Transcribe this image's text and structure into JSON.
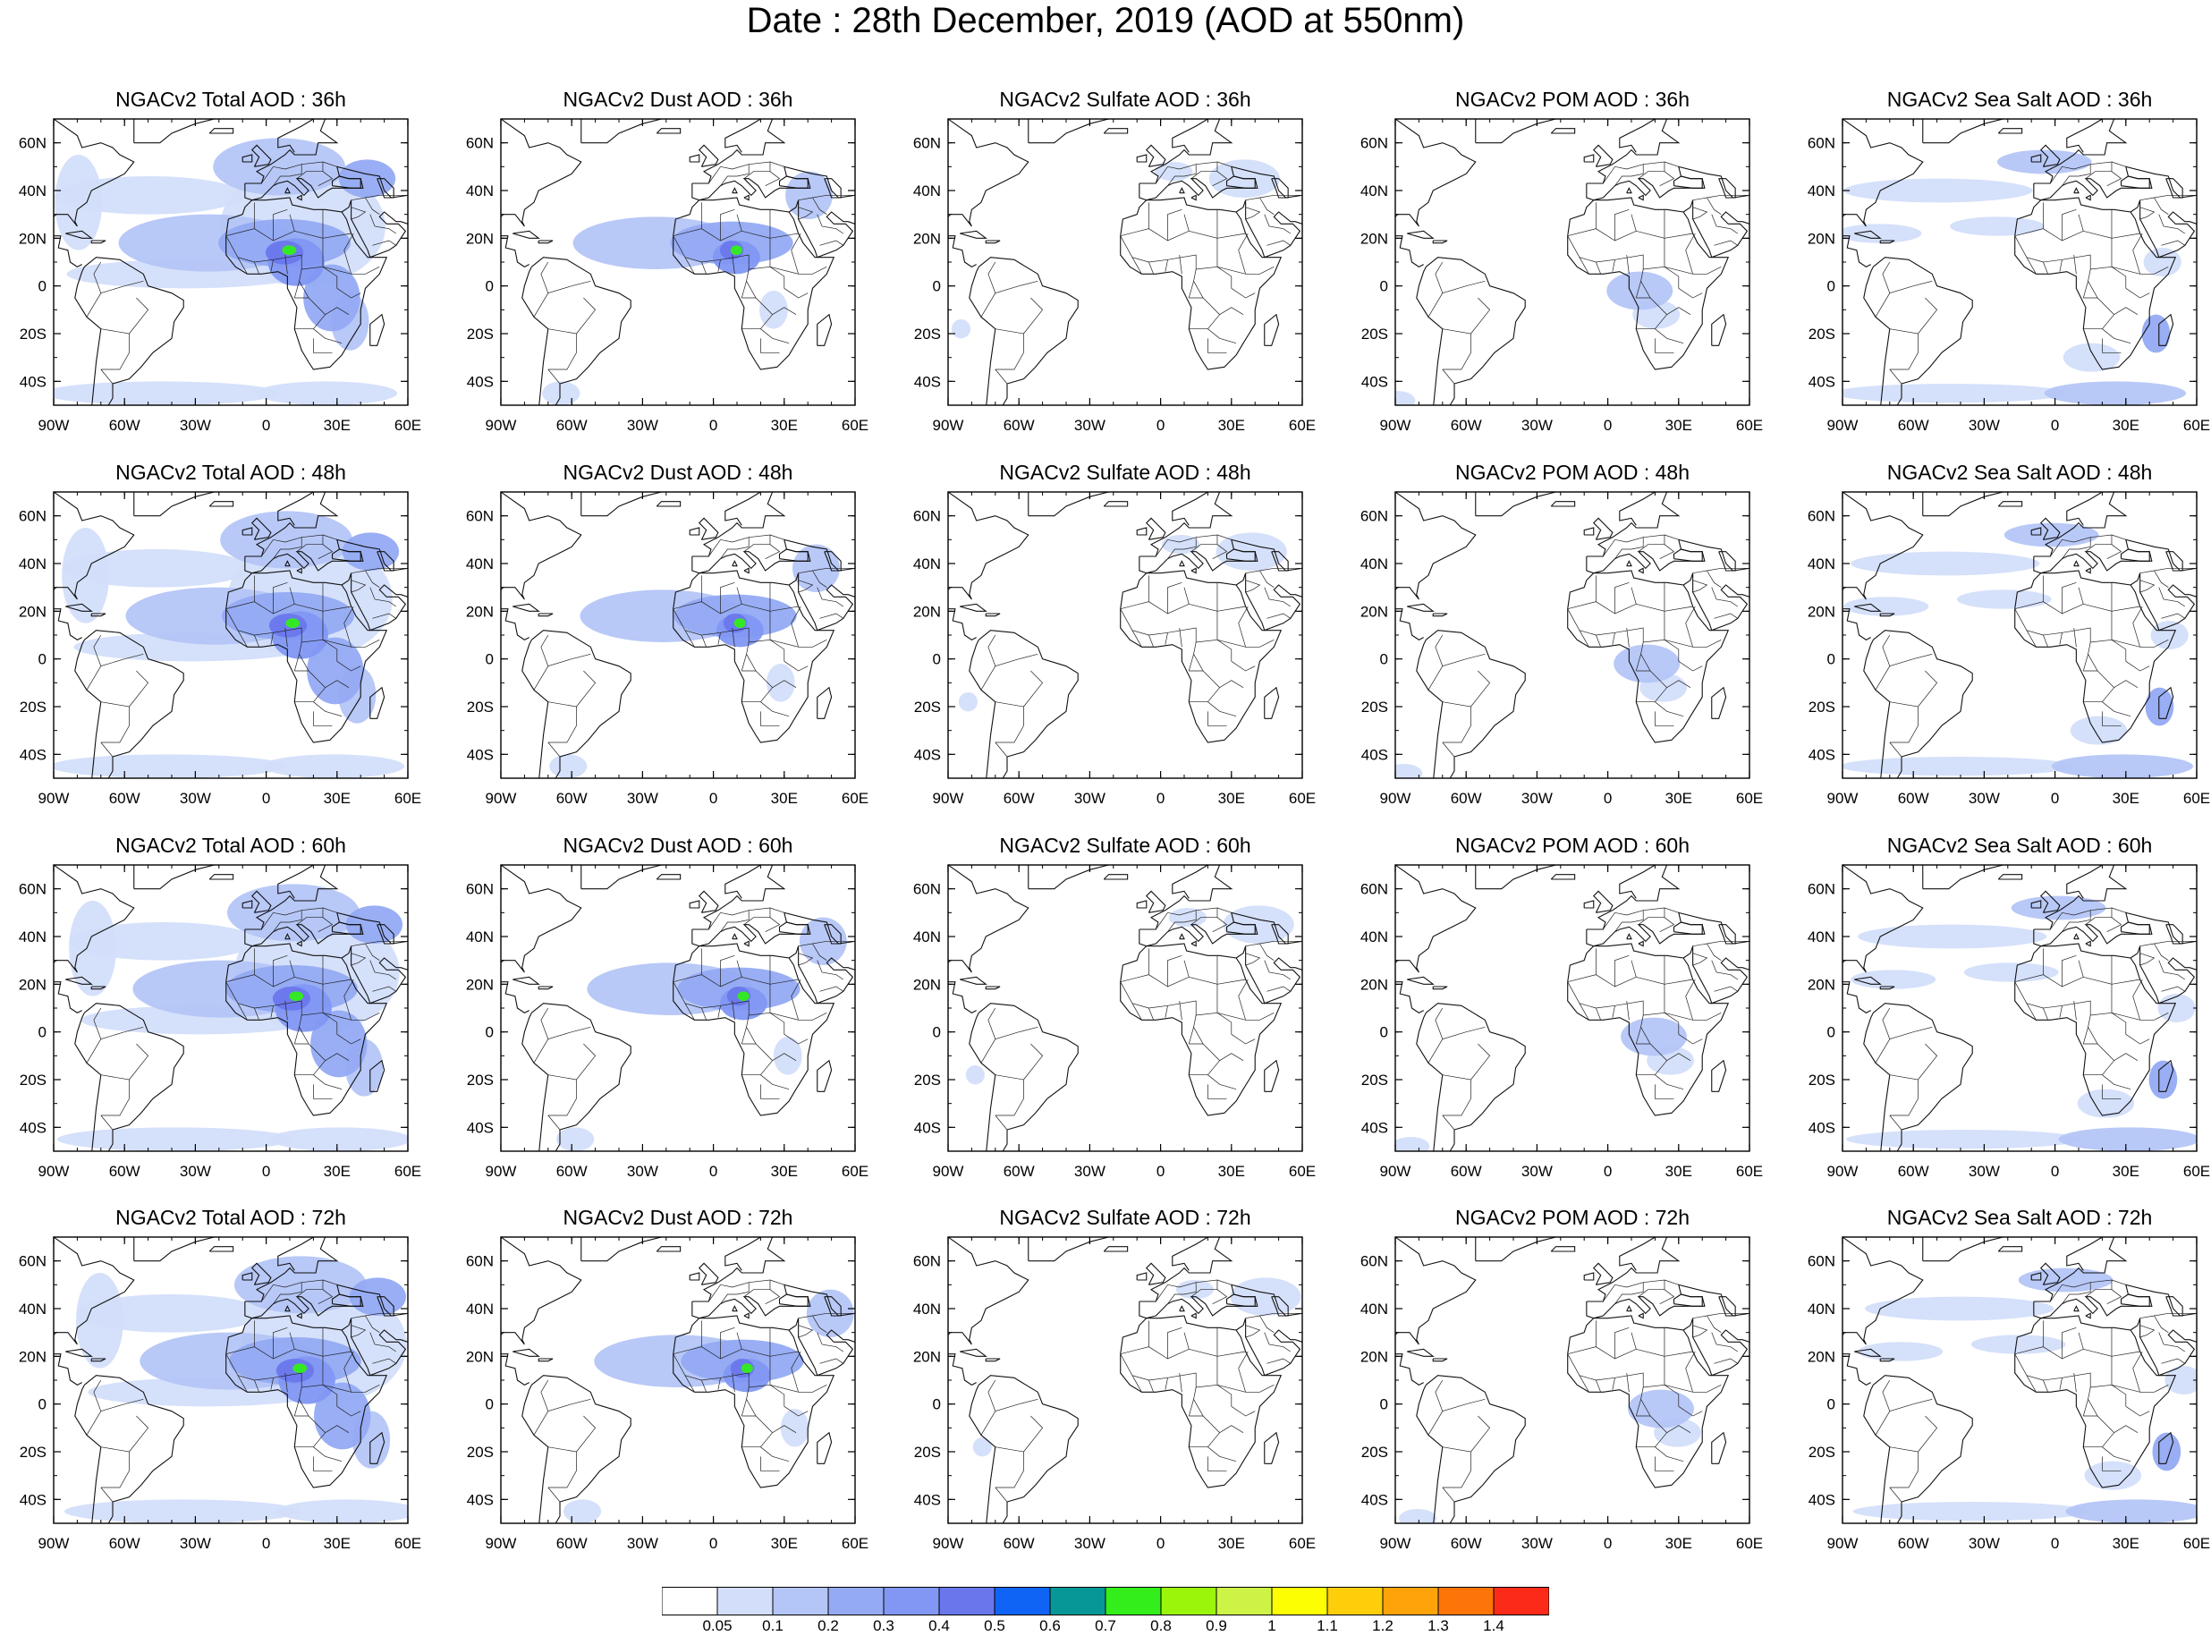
{
  "title": "Date : 28th December, 2019 (AOD at 550nm)",
  "columns": [
    "Total",
    "Dust",
    "Sulfate",
    "POM",
    "Sea Salt"
  ],
  "panels": [
    [
      "NGACv2 Total AOD : 36h",
      "NGACv2 Dust AOD : 36h",
      "NGACv2 Sulfate AOD : 36h",
      "NGACv2 POM AOD : 36h",
      "NGACv2 Sea Salt AOD : 36h"
    ],
    [
      "NGACv2 Total AOD : 48h",
      "NGACv2 Dust AOD : 48h",
      "NGACv2 Sulfate AOD : 48h",
      "NGACv2 POM AOD : 48h",
      "NGACv2 Sea Salt AOD : 48h"
    ],
    [
      "NGACv2 Total AOD : 60h",
      "NGACv2 Dust AOD : 60h",
      "NGACv2 Sulfate AOD : 60h",
      "NGACv2 POM AOD : 60h",
      "NGACv2 Sea Salt AOD : 60h"
    ],
    [
      "NGACv2 Total AOD : 72h",
      "NGACv2 Dust AOD : 72h",
      "NGACv2 Sulfate AOD : 72h",
      "NGACv2 POM AOD : 72h",
      "NGACv2 Sea Salt  AOD : 72h"
    ]
  ],
  "lat_ticks": [
    "60N",
    "40N",
    "20N",
    "0",
    "20S",
    "40S"
  ],
  "lat_values": [
    60,
    40,
    20,
    0,
    -20,
    -40
  ],
  "lon_ticks_default": [
    "90W",
    "60W",
    "30W",
    "0",
    "30E",
    "60E"
  ],
  "lon_ticks_pom_72h": [
    "90W",
    "60W",
    "30W",
    "0",
    "30E",
    "60E"
  ],
  "lon_values": [
    -90,
    -60,
    -30,
    0,
    30,
    60
  ],
  "map_extent": {
    "lon": [
      -90,
      60
    ],
    "lat": [
      -50,
      70
    ]
  },
  "colorbar": {
    "labels": [
      "0.05",
      "0.1",
      "0.2",
      "0.3",
      "0.4",
      "0.5",
      "0.6",
      "0.7",
      "0.8",
      "0.9",
      "1",
      "1.1",
      "1.2",
      "1.3",
      "1.4"
    ],
    "colors": [
      "#ffffff",
      "#d3defa",
      "#b4c5f7",
      "#94aaf3",
      "#8197f3",
      "#6a77ec",
      "#0f64f5",
      "#079797",
      "#33ee1a",
      "#9bf50b",
      "#cdf346",
      "#fefe02",
      "#fece0a",
      "#fea30a",
      "#fd7508",
      "#fc2b19"
    ]
  }
}
